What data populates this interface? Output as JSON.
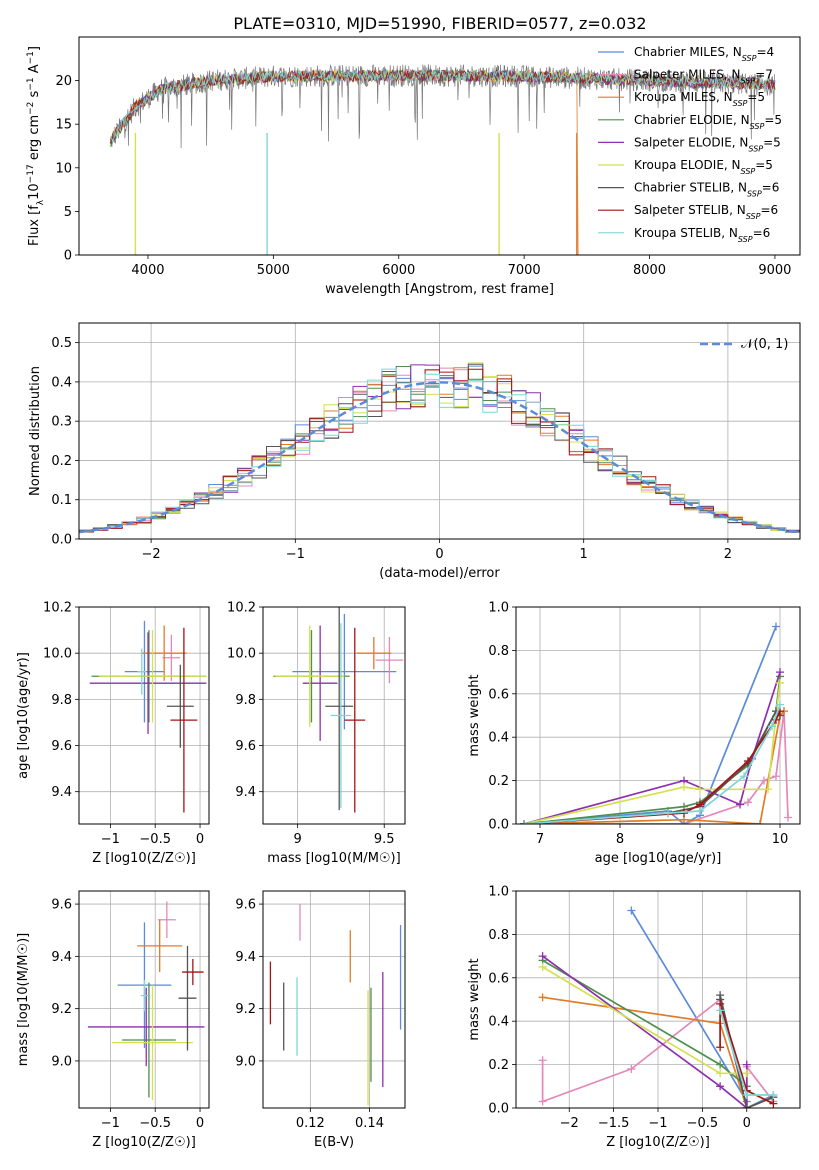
{
  "figure_title": "PLATE=0310, MJD=51990, FIBERID=0577, z=0.032",
  "colors": {
    "Chabrier MILES": "#5b8bd9",
    "Salpeter MILES": "#e389b9",
    "Kroupa MILES": "#e07b28",
    "Chabrier ELODIE": "#4f8f4f",
    "Salpeter ELODIE": "#8e2fae",
    "Kroupa ELODIE": "#d4e04f",
    "Chabrier STELIB": "#555555",
    "Salpeter STELIB": "#a31515",
    "Kroupa STELIB": "#7fd6d6"
  },
  "chart_data": [
    {
      "type": "line",
      "xlabel": "wavelength [Angstrom, rest frame]",
      "ylabel": "Flux [f$_\\lambda$10$^{-17}$ erg cm$^{-2}$ s$^{-1}$ A$^{-1}$]",
      "xlim": [
        3450,
        9200
      ],
      "ylim": [
        0,
        25
      ],
      "xticks": [
        4000,
        5000,
        6000,
        7000,
        8000,
        9000
      ],
      "yticks": [
        0,
        5,
        10,
        15,
        20
      ],
      "legend_position": "upper-right",
      "legend": [
        {
          "label": "Chabrier MILES, N",
          "sub": "SSP",
          "tail": "=4"
        },
        {
          "label": "Salpeter MILES, N",
          "sub": "SSP",
          "tail": "=7"
        },
        {
          "label": "Kroupa MILES, N",
          "sub": "SSP",
          "tail": "=5"
        },
        {
          "label": "Chabrier ELODIE, N",
          "sub": "SSP",
          "tail": "=5"
        },
        {
          "label": "Salpeter ELODIE, N",
          "sub": "SSP",
          "tail": "=5"
        },
        {
          "label": "Kroupa ELODIE, N",
          "sub": "SSP",
          "tail": "=5"
        },
        {
          "label": "Chabrier STELIB, N",
          "sub": "SSP",
          "tail": "=6"
        },
        {
          "label": "Salpeter STELIB, N",
          "sub": "SSP",
          "tail": "=6"
        },
        {
          "label": "Kroupa STELIB, N",
          "sub": "SSP",
          "tail": "=6"
        }
      ],
      "spectrum_range": [
        3700,
        9000
      ],
      "continuum": [
        [
          3700,
          13
        ],
        [
          3900,
          17
        ],
        [
          4100,
          19
        ],
        [
          4500,
          20
        ],
        [
          5000,
          20.5
        ],
        [
          6000,
          20.6
        ],
        [
          7000,
          20.5
        ],
        [
          8000,
          20
        ],
        [
          9000,
          19.5
        ]
      ],
      "model_drop_edges": [
        [
          3900,
          0
        ],
        [
          4950,
          0
        ],
        [
          6800,
          0
        ],
        [
          7420,
          0
        ]
      ]
    },
    {
      "type": "bar",
      "xlabel": "(data-model)/error",
      "ylabel": "Normed distribution",
      "xlim": [
        -2.5,
        2.5
      ],
      "ylim": [
        0,
        0.55
      ],
      "xticks": [
        -2,
        -1,
        0,
        1,
        2
      ],
      "yticks": [
        0.0,
        0.1,
        0.2,
        0.3,
        0.4,
        0.5
      ],
      "legend": [
        "N(0,1)"
      ],
      "legend_position": "upper-right",
      "bin_width": 0.1,
      "reference_curve": "gaussian mean 0 sigma 1"
    },
    {
      "type": "scatter",
      "xlabel": "Z [log10(Z/Z☉)]",
      "ylabel": "age  [log10(age/yr)]",
      "xlim": [
        -1.35,
        0.1
      ],
      "ylim": [
        9.26,
        10.2
      ],
      "xticks": [
        -1.0,
        -0.5,
        0.0
      ],
      "yticks": [
        9.4,
        9.6,
        9.8,
        10.0,
        10.2
      ],
      "points": [
        {
          "model": "Chabrier MILES",
          "x": -0.62,
          "y": 9.92,
          "xerr": 0.22,
          "yerr": 0.22
        },
        {
          "model": "Salpeter MILES",
          "x": -0.32,
          "y": 9.98,
          "xerr": 0.1,
          "yerr": 0.1
        },
        {
          "model": "Kroupa MILES",
          "x": -0.4,
          "y": 10.0,
          "xerr": 0.25,
          "yerr": 0.12
        },
        {
          "model": "Chabrier ELODIE",
          "x": -0.57,
          "y": 9.9,
          "xerr": 0.64,
          "yerr": 0.2
        },
        {
          "model": "Salpeter ELODIE",
          "x": -0.58,
          "y": 9.87,
          "xerr": 0.65,
          "yerr": 0.22
        },
        {
          "model": "Kroupa ELODIE",
          "x": -0.53,
          "y": 9.9,
          "xerr": 0.6,
          "yerr": 0.2
        },
        {
          "model": "Chabrier STELIB",
          "x": -0.22,
          "y": 9.77,
          "xerr": 0.15,
          "yerr": 0.18
        },
        {
          "model": "Salpeter STELIB",
          "x": -0.18,
          "y": 9.71,
          "xerr": 0.15,
          "yerr": 0.4
        },
        {
          "model": "Kroupa STELIB",
          "x": -0.65,
          "y": 9.92,
          "xerr": 0.05,
          "yerr": 0.1
        }
      ]
    },
    {
      "type": "scatter",
      "xlabel": "mass [log10(M/M☉)]",
      "ylabel": "",
      "xlim": [
        8.8,
        9.62
      ],
      "ylim": [
        9.26,
        10.2
      ],
      "xticks": [
        9.0,
        9.5
      ],
      "yticks": [
        9.4,
        9.6,
        9.8,
        10.0,
        10.2
      ],
      "points": [
        {
          "model": "Chabrier MILES",
          "x": 9.27,
          "y": 9.92,
          "xerr": 0.3,
          "yerr": 0.25
        },
        {
          "model": "Salpeter MILES",
          "x": 9.53,
          "y": 9.97,
          "xerr": 0.08,
          "yerr": 0.1
        },
        {
          "model": "Kroupa MILES",
          "x": 9.44,
          "y": 10.0,
          "xerr": 0.1,
          "yerr": 0.07
        },
        {
          "model": "Chabrier ELODIE",
          "x": 9.08,
          "y": 9.9,
          "xerr": 0.22,
          "yerr": 0.2
        },
        {
          "model": "Salpeter ELODIE",
          "x": 9.13,
          "y": 9.87,
          "xerr": 0.1,
          "yerr": 0.25
        },
        {
          "model": "Kroupa ELODIE",
          "x": 9.07,
          "y": 9.9,
          "xerr": 0.2,
          "yerr": 0.22
        },
        {
          "model": "Chabrier STELIB",
          "x": 9.24,
          "y": 9.77,
          "xerr": 0.08,
          "yerr": 0.45
        },
        {
          "model": "Salpeter STELIB",
          "x": 9.33,
          "y": 9.71,
          "xerr": 0.06,
          "yerr": 0.4
        },
        {
          "model": "Kroupa STELIB",
          "x": 9.25,
          "y": 9.73,
          "xerr": 0.06,
          "yerr": 0.4
        }
      ]
    },
    {
      "type": "line",
      "xlabel": "age  [log10(age/yr)]",
      "ylabel": "mass weight",
      "xlim": [
        6.7,
        10.25
      ],
      "ylim": [
        0,
        1.0
      ],
      "xticks": [
        7,
        8,
        9,
        10
      ],
      "yticks": [
        0.0,
        0.2,
        0.4,
        0.6,
        0.8,
        1.0
      ],
      "series": [
        {
          "model": "Chabrier MILES",
          "x": [
            6.8,
            8.6,
            8.8,
            9.0,
            9.95
          ],
          "y": [
            0.0,
            0.06,
            0.0,
            0.04,
            0.91
          ]
        },
        {
          "model": "Salpeter MILES",
          "x": [
            6.8,
            8.8,
            9.6,
            9.8,
            9.95,
            10.05,
            10.1
          ],
          "y": [
            0.0,
            0.0,
            0.1,
            0.2,
            0.22,
            0.52,
            0.03
          ]
        },
        {
          "model": "Kroupa MILES",
          "x": [
            6.8,
            8.8,
            9.75,
            10.0,
            10.05
          ],
          "y": [
            0.0,
            0.02,
            0.0,
            0.5,
            0.52
          ]
        },
        {
          "model": "Chabrier ELODIE",
          "x": [
            6.8,
            8.8,
            9.0,
            9.6,
            9.95,
            10.0
          ],
          "y": [
            0.0,
            0.08,
            0.1,
            0.27,
            0.52,
            0.68
          ]
        },
        {
          "model": "Salpeter ELODIE",
          "x": [
            6.8,
            8.8,
            9.5,
            9.65,
            10.0
          ],
          "y": [
            0.0,
            0.2,
            0.09,
            0.3,
            0.7
          ]
        },
        {
          "model": "Kroupa ELODIE",
          "x": [
            6.8,
            8.8,
            9.0,
            9.85,
            9.95,
            10.0
          ],
          "y": [
            0.0,
            0.17,
            0.16,
            0.16,
            0.5,
            0.65
          ]
        },
        {
          "model": "Chabrier STELIB",
          "x": [
            6.8,
            8.6,
            9.0,
            9.6,
            9.95,
            10.0
          ],
          "y": [
            0.0,
            0.05,
            0.08,
            0.28,
            0.52,
            0.5
          ]
        },
        {
          "model": "Salpeter STELIB",
          "x": [
            6.8,
            8.8,
            9.0,
            9.6,
            9.95,
            10.0
          ],
          "y": [
            0.0,
            0.05,
            0.09,
            0.29,
            0.48,
            0.52
          ]
        },
        {
          "model": "Kroupa STELIB",
          "x": [
            6.8,
            8.6,
            9.0,
            9.55,
            9.9,
            10.0
          ],
          "y": [
            0.0,
            0.05,
            0.06,
            0.22,
            0.45,
            0.55
          ]
        }
      ]
    },
    {
      "type": "scatter",
      "xlabel": "Z [log10(Z/Z☉)]",
      "ylabel": "mass [log10(M/M☉)]",
      "xlim": [
        -1.35,
        0.1
      ],
      "ylim": [
        8.82,
        9.65
      ],
      "xticks": [
        -1.0,
        -0.5,
        0.0
      ],
      "yticks": [
        9.0,
        9.2,
        9.4,
        9.6
      ],
      "points": [
        {
          "model": "Chabrier MILES",
          "x": -0.62,
          "y": 9.29,
          "xerr": 0.3,
          "yerr": 0.24
        },
        {
          "model": "Salpeter MILES",
          "x": -0.37,
          "y": 9.54,
          "xerr": 0.1,
          "yerr": 0.07
        },
        {
          "model": "Kroupa MILES",
          "x": -0.45,
          "y": 9.44,
          "xerr": 0.25,
          "yerr": 0.1
        },
        {
          "model": "Chabrier ELODIE",
          "x": -0.57,
          "y": 9.08,
          "xerr": 0.3,
          "yerr": 0.22
        },
        {
          "model": "Salpeter ELODIE",
          "x": -0.6,
          "y": 9.13,
          "xerr": 0.65,
          "yerr": 0.15
        },
        {
          "model": "Kroupa ELODIE",
          "x": -0.53,
          "y": 9.07,
          "xerr": 0.45,
          "yerr": 0.22
        },
        {
          "model": "Chabrier STELIB",
          "x": -0.14,
          "y": 9.24,
          "xerr": 0.1,
          "yerr": 0.2
        },
        {
          "model": "Salpeter STELIB",
          "x": -0.08,
          "y": 9.34,
          "xerr": 0.12,
          "yerr": 0.05
        },
        {
          "model": "Kroupa STELIB",
          "x": -0.62,
          "y": 9.25,
          "xerr": 0.04,
          "yerr": 0.06
        }
      ]
    },
    {
      "type": "scatter",
      "xlabel": "E(B-V)",
      "ylabel": "",
      "xlim": [
        0.104,
        0.152
      ],
      "ylim": [
        8.82,
        9.65
      ],
      "xticks": [
        0.12,
        0.14
      ],
      "yticks": [
        9.0,
        9.2,
        9.4,
        9.6
      ],
      "points": [
        {
          "model": "Chabrier MILES",
          "x": 0.1505,
          "y": 9.32,
          "xerr": 0,
          "yerr": 0.2
        },
        {
          "model": "Salpeter MILES",
          "x": 0.1165,
          "y": 9.53,
          "xerr": 0,
          "yerr": 0.07
        },
        {
          "model": "Kroupa MILES",
          "x": 0.1335,
          "y": 9.4,
          "xerr": 0,
          "yerr": 0.1
        },
        {
          "model": "Chabrier ELODIE",
          "x": 0.1405,
          "y": 9.1,
          "xerr": 0,
          "yerr": 0.18
        },
        {
          "model": "Salpeter ELODIE",
          "x": 0.1445,
          "y": 9.12,
          "xerr": 0,
          "yerr": 0.22
        },
        {
          "model": "Kroupa ELODIE",
          "x": 0.1395,
          "y": 9.05,
          "xerr": 0,
          "yerr": 0.22
        },
        {
          "model": "Chabrier STELIB",
          "x": 0.111,
          "y": 9.17,
          "xerr": 0,
          "yerr": 0.13
        },
        {
          "model": "Salpeter STELIB",
          "x": 0.1065,
          "y": 9.26,
          "xerr": 0,
          "yerr": 0.12
        },
        {
          "model": "Kroupa STELIB",
          "x": 0.1155,
          "y": 9.17,
          "xerr": 0,
          "yerr": 0.15
        }
      ]
    },
    {
      "type": "line",
      "xlabel": "Z [log10(Z/Z☉)]",
      "ylabel": "mass weight",
      "xlim": [
        -2.6,
        0.6
      ],
      "ylim": [
        0,
        1.0
      ],
      "xticks": [
        -2.0,
        -1.5,
        -1.0,
        -0.5,
        0.0
      ],
      "yticks": [
        0.0,
        0.2,
        0.4,
        0.6,
        0.8,
        1.0
      ],
      "series": [
        {
          "model": "Chabrier MILES",
          "x": [
            -1.3,
            0.0,
            0.0,
            0.3
          ],
          "y": [
            0.91,
            0.03,
            0.0,
            0.06
          ]
        },
        {
          "model": "Salpeter MILES",
          "x": [
            -2.3,
            -2.3,
            -1.3,
            -0.3,
            0.0,
            0.0,
            0.3
          ],
          "y": [
            0.22,
            0.03,
            0.18,
            0.5,
            0.0,
            0.19,
            0.03
          ]
        },
        {
          "model": "Kroupa MILES",
          "x": [
            -2.3,
            -0.3,
            0.0,
            0.3
          ],
          "y": [
            0.51,
            0.39,
            0.0,
            0.05
          ]
        },
        {
          "model": "Chabrier ELODIE",
          "x": [
            -2.3,
            -0.3,
            0.0
          ],
          "y": [
            0.68,
            0.2,
            0.1
          ]
        },
        {
          "model": "Salpeter ELODIE",
          "x": [
            -2.3,
            -0.3,
            0.0,
            0.0
          ],
          "y": [
            0.7,
            0.1,
            0.0,
            0.2
          ]
        },
        {
          "model": "Kroupa ELODIE",
          "x": [
            -2.3,
            -0.3,
            0.0
          ],
          "y": [
            0.65,
            0.16,
            0.16
          ]
        },
        {
          "model": "Chabrier STELIB",
          "x": [
            -0.3,
            -0.3,
            0.0,
            0.3
          ],
          "y": [
            0.5,
            0.52,
            0.0,
            0.05
          ]
        },
        {
          "model": "Salpeter STELIB",
          "x": [
            -0.3,
            -0.3,
            0.0,
            0.3
          ],
          "y": [
            0.28,
            0.48,
            0.08,
            0.02
          ]
        },
        {
          "model": "Kroupa STELIB",
          "x": [
            -0.3,
            0.0,
            0.3
          ],
          "y": [
            0.45,
            0.06,
            0.06
          ]
        }
      ]
    }
  ]
}
